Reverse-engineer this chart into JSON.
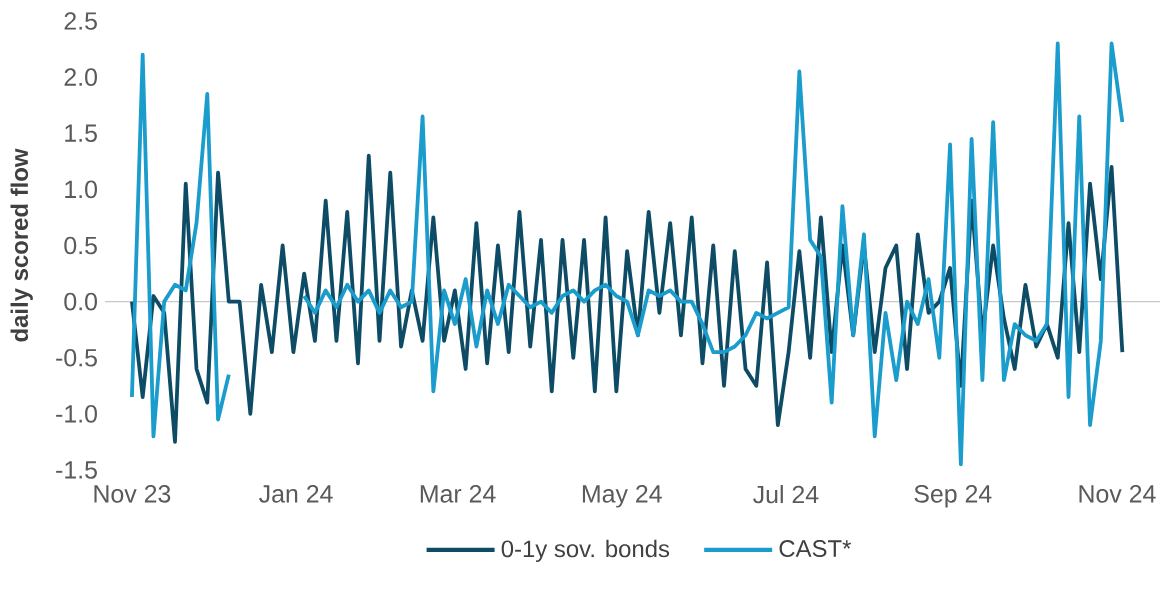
{
  "chart_data": {
    "type": "line",
    "ylabel": "daily scored flow",
    "x": [
      "2023-11-01",
      "2023-11-05",
      "2023-11-09",
      "2023-11-13",
      "2023-11-17",
      "2023-11-21",
      "2023-11-25",
      "2023-11-29",
      "2023-12-03",
      "2023-12-07",
      "2023-12-11",
      "2023-12-15",
      "2023-12-19",
      "2023-12-23",
      "2023-12-27",
      "2023-12-31",
      "2024-01-04",
      "2024-01-08",
      "2024-01-12",
      "2024-01-16",
      "2024-01-20",
      "2024-01-24",
      "2024-01-28",
      "2024-02-01",
      "2024-02-05",
      "2024-02-09",
      "2024-02-13",
      "2024-02-17",
      "2024-02-21",
      "2024-02-25",
      "2024-02-29",
      "2024-03-04",
      "2024-03-08",
      "2024-03-12",
      "2024-03-16",
      "2024-03-20",
      "2024-03-24",
      "2024-03-28",
      "2024-04-01",
      "2024-04-05",
      "2024-04-09",
      "2024-04-13",
      "2024-04-17",
      "2024-04-21",
      "2024-04-25",
      "2024-04-29",
      "2024-05-03",
      "2024-05-07",
      "2024-05-11",
      "2024-05-15",
      "2024-05-19",
      "2024-05-23",
      "2024-05-27",
      "2024-05-31",
      "2024-06-04",
      "2024-06-08",
      "2024-06-12",
      "2024-06-16",
      "2024-06-20",
      "2024-06-24",
      "2024-06-28",
      "2024-07-02",
      "2024-07-06",
      "2024-07-10",
      "2024-07-14",
      "2024-07-18",
      "2024-07-22",
      "2024-07-26",
      "2024-07-30",
      "2024-08-03",
      "2024-08-07",
      "2024-08-11",
      "2024-08-15",
      "2024-08-19",
      "2024-08-23",
      "2024-08-27",
      "2024-08-31",
      "2024-09-04",
      "2024-09-08",
      "2024-09-12",
      "2024-09-16",
      "2024-09-20",
      "2024-09-24",
      "2024-09-28",
      "2024-10-02",
      "2024-10-06",
      "2024-10-10",
      "2024-10-14",
      "2024-10-18",
      "2024-10-22",
      "2024-10-26",
      "2024-10-30",
      "2024-11-03"
    ],
    "series": [
      {
        "name": "0-1y sov. bonds",
        "color": "#0e4c66",
        "values": [
          0.0,
          -0.85,
          0.05,
          -0.1,
          -1.25,
          1.05,
          -0.6,
          -0.9,
          1.15,
          0.0,
          0.0,
          -1.0,
          0.15,
          -0.45,
          0.5,
          -0.45,
          0.25,
          -0.35,
          0.9,
          -0.35,
          0.8,
          -0.55,
          1.3,
          -0.35,
          1.15,
          -0.4,
          0.1,
          -0.35,
          0.75,
          -0.35,
          0.1,
          -0.6,
          0.7,
          -0.55,
          0.5,
          -0.45,
          0.8,
          -0.4,
          0.55,
          -0.8,
          0.55,
          -0.5,
          0.55,
          -0.8,
          0.75,
          -0.8,
          0.45,
          -0.3,
          0.8,
          -0.1,
          0.7,
          -0.3,
          0.75,
          -0.55,
          0.5,
          -0.75,
          0.45,
          -0.6,
          -0.75,
          0.35,
          -1.1,
          -0.45,
          0.45,
          -0.5,
          0.75,
          -0.45,
          0.5,
          -0.3,
          0.5,
          -0.45,
          0.3,
          0.5,
          -0.6,
          0.6,
          -0.1,
          0.0,
          0.3,
          -0.75,
          0.9,
          -0.3,
          0.5,
          -0.15,
          -0.6,
          0.15,
          -0.4,
          -0.2,
          -0.5,
          0.7,
          -0.45,
          1.05,
          0.2,
          1.2,
          -0.45
        ]
      },
      {
        "name": "CAST*",
        "color": "#1a9ccc",
        "values": [
          -0.85,
          2.2,
          -1.2,
          0.0,
          0.15,
          0.1,
          0.7,
          1.85,
          -1.05,
          -0.65,
          null,
          null,
          null,
          null,
          null,
          null,
          0.05,
          -0.1,
          0.1,
          -0.05,
          0.15,
          0.0,
          0.1,
          -0.1,
          0.1,
          -0.05,
          0.0,
          1.65,
          -0.8,
          0.1,
          -0.2,
          0.2,
          -0.4,
          0.1,
          -0.2,
          0.15,
          0.05,
          -0.05,
          0.0,
          -0.1,
          0.05,
          0.1,
          0.0,
          0.1,
          0.15,
          0.05,
          0.0,
          -0.3,
          0.1,
          0.05,
          0.1,
          0.0,
          0.0,
          -0.2,
          -0.45,
          -0.45,
          -0.4,
          -0.3,
          -0.1,
          -0.15,
          -0.1,
          -0.05,
          2.05,
          0.55,
          0.4,
          -0.9,
          0.85,
          -0.3,
          0.6,
          -1.2,
          -0.1,
          -0.7,
          0.0,
          -0.2,
          0.2,
          -0.5,
          1.4,
          -1.45,
          1.45,
          -0.7,
          1.6,
          -0.7,
          -0.2,
          -0.3,
          -0.35,
          -0.2,
          2.3,
          -0.85,
          1.65,
          -1.1,
          -0.35,
          2.3,
          1.6
        ]
      }
    ],
    "xlim": [
      "2023-10-22",
      "2024-11-17"
    ],
    "xticks": [
      {
        "value": "2023-11-01",
        "label": "Nov 23"
      },
      {
        "value": "2024-01-01",
        "label": "Jan 24"
      },
      {
        "value": "2024-03-01",
        "label": "Mar 24"
      },
      {
        "value": "2024-05-01",
        "label": "May 24"
      },
      {
        "value": "2024-07-01",
        "label": "Jul 24"
      },
      {
        "value": "2024-09-01",
        "label": "Sep 24"
      },
      {
        "value": "2024-11-01",
        "label": "Nov 24"
      }
    ],
    "ylim": [
      -1.5,
      2.5
    ],
    "yticks": [
      -1.5,
      {
        "value": -1,
        "label": "-1.0"
      },
      -0.5,
      {
        "value": 0,
        "label": "0.0"
      },
      0.5,
      {
        "value": 1,
        "label": "1.0"
      },
      1.5,
      {
        "value": 2,
        "label": "2.0"
      },
      2.5
    ],
    "ref_lines": [
      {
        "axis": "y",
        "value": 0,
        "color": "#c8c8c8"
      }
    ],
    "legend": "bottom",
    "marker": "none",
    "line_style": "solid"
  }
}
